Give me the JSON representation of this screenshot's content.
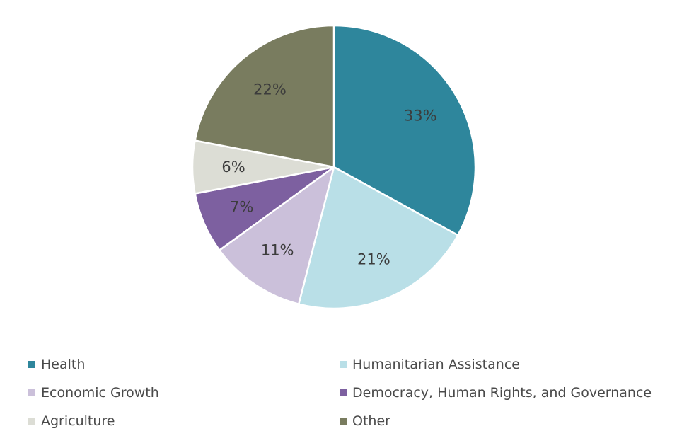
{
  "chart_data": {
    "type": "pie",
    "slices": [
      {
        "name": "Health",
        "value": 33,
        "label": "33%",
        "color": "#2e869c"
      },
      {
        "name": "Humanitarian Assistance",
        "value": 21,
        "label": "21%",
        "color": "#b9dfe7"
      },
      {
        "name": "Economic Growth",
        "value": 11,
        "label": "11%",
        "color": "#cbc0da"
      },
      {
        "name": "Democracy, Human Rights, and Governance",
        "value": 7,
        "label": "7%",
        "color": "#7d60a0"
      },
      {
        "name": "Agriculture",
        "value": 6,
        "label": "6%",
        "color": "#dcddd5"
      },
      {
        "name": "Other",
        "value": 22,
        "label": "22%",
        "color": "#797c5f"
      }
    ],
    "start_angle_deg": 0,
    "direction": "clockwise",
    "legend_position": "bottom",
    "legend_columns": 2
  }
}
